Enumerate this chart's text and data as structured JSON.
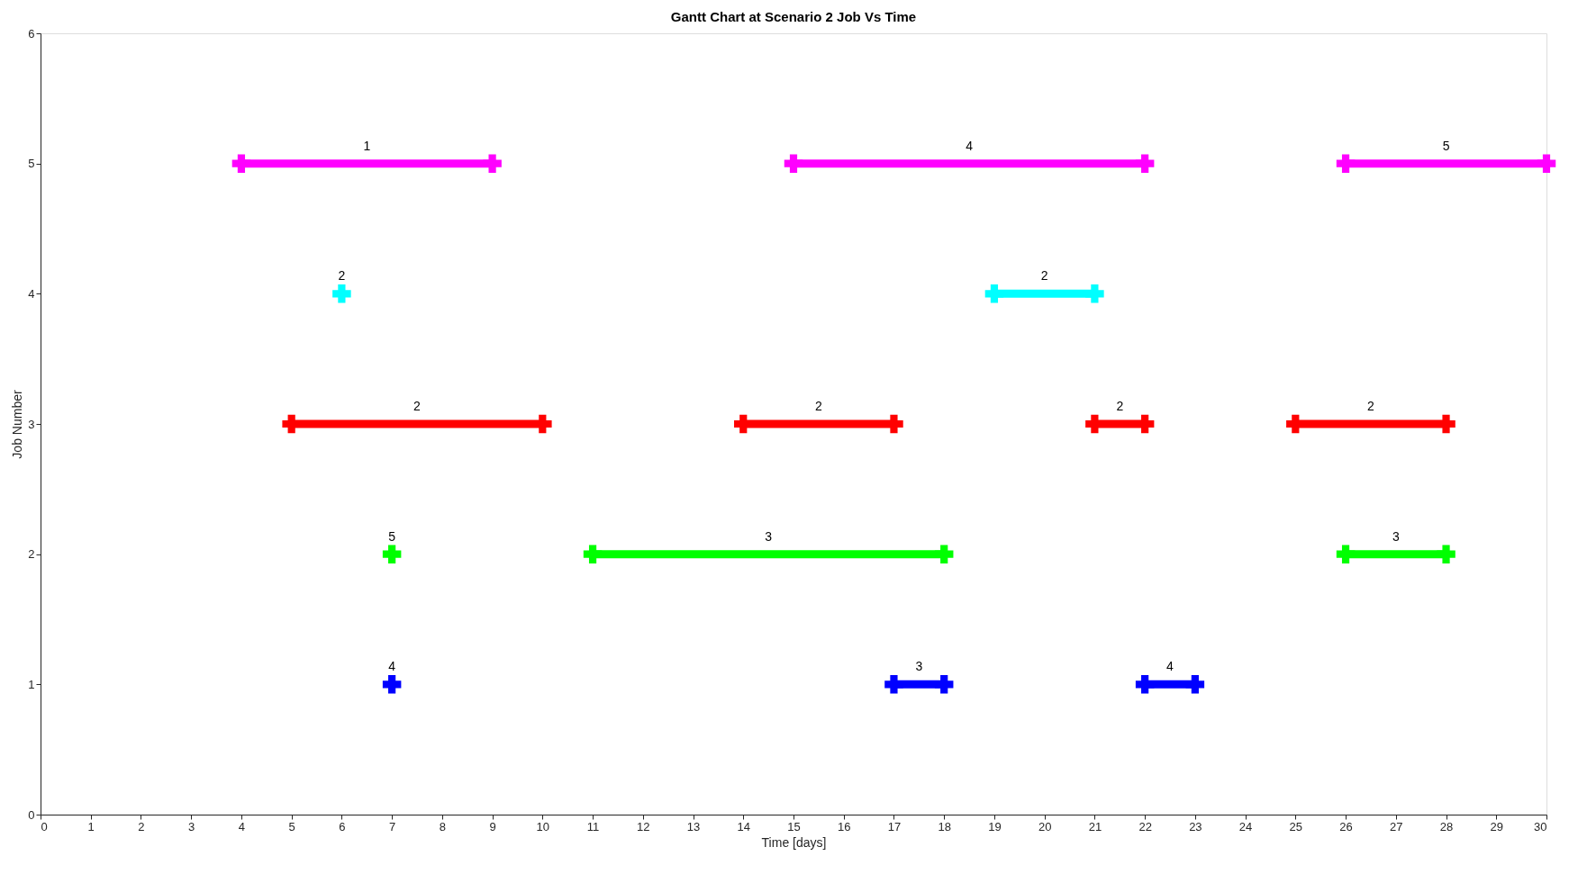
{
  "chart_data": {
    "type": "line",
    "title": "Gantt Chart at Scenario 2 Job Vs Time",
    "xlabel": "Time [days]",
    "ylabel": "Job Number",
    "xlim": [
      0,
      30
    ],
    "ylim": [
      0,
      6
    ],
    "xticks": [
      0,
      1,
      2,
      3,
      4,
      5,
      6,
      7,
      8,
      9,
      10,
      11,
      12,
      13,
      14,
      15,
      16,
      17,
      18,
      19,
      20,
      21,
      22,
      23,
      24,
      25,
      26,
      27,
      28,
      29,
      30
    ],
    "yticks": [
      0,
      1,
      2,
      3,
      4,
      5,
      6
    ],
    "grid": false,
    "marker": "cross",
    "line_style": "solid",
    "series": [
      {
        "color": "#ff00ff",
        "x": [
          4,
          9
        ],
        "values": [
          5,
          5
        ]
      },
      {
        "color": "#ff00ff",
        "x": [
          15,
          22
        ],
        "values": [
          5,
          5
        ]
      },
      {
        "color": "#ff00ff",
        "x": [
          26,
          30
        ],
        "values": [
          5,
          5
        ]
      },
      {
        "color": "#00ffff",
        "x": [
          6
        ],
        "values": [
          4
        ]
      },
      {
        "color": "#00ffff",
        "x": [
          19,
          21
        ],
        "values": [
          4,
          4
        ]
      },
      {
        "color": "#ff0000",
        "x": [
          5,
          10
        ],
        "values": [
          3,
          3
        ]
      },
      {
        "color": "#ff0000",
        "x": [
          14,
          17
        ],
        "values": [
          3,
          3
        ]
      },
      {
        "color": "#ff0000",
        "x": [
          21,
          22
        ],
        "values": [
          3,
          3
        ]
      },
      {
        "color": "#ff0000",
        "x": [
          25,
          28
        ],
        "values": [
          3,
          3
        ]
      },
      {
        "color": "#00ff00",
        "x": [
          7
        ],
        "values": [
          2
        ]
      },
      {
        "color": "#00ff00",
        "x": [
          11,
          18
        ],
        "values": [
          2,
          2
        ]
      },
      {
        "color": "#00ff00",
        "x": [
          26,
          28
        ],
        "values": [
          2,
          2
        ]
      },
      {
        "color": "#0000ff",
        "x": [
          7
        ],
        "values": [
          1
        ]
      },
      {
        "color": "#0000ff",
        "x": [
          17,
          18
        ],
        "values": [
          1,
          1
        ]
      },
      {
        "color": "#0000ff",
        "x": [
          22,
          23
        ],
        "values": [
          1,
          1
        ]
      }
    ],
    "annotations": [
      {
        "text": "1",
        "x": 6.5,
        "y": 5
      },
      {
        "text": "4",
        "x": 18.5,
        "y": 5
      },
      {
        "text": "5",
        "x": 28,
        "y": 5
      },
      {
        "text": "2",
        "x": 6,
        "y": 4
      },
      {
        "text": "2",
        "x": 20,
        "y": 4
      },
      {
        "text": "2",
        "x": 7.5,
        "y": 3
      },
      {
        "text": "2",
        "x": 15.5,
        "y": 3
      },
      {
        "text": "2",
        "x": 21.5,
        "y": 3
      },
      {
        "text": "2",
        "x": 26.5,
        "y": 3
      },
      {
        "text": "5",
        "x": 7,
        "y": 2
      },
      {
        "text": "3",
        "x": 14.5,
        "y": 2
      },
      {
        "text": "3",
        "x": 27,
        "y": 2
      },
      {
        "text": "4",
        "x": 7,
        "y": 1
      },
      {
        "text": "3",
        "x": 17.5,
        "y": 1
      },
      {
        "text": "4",
        "x": 22.5,
        "y": 1
      }
    ]
  }
}
